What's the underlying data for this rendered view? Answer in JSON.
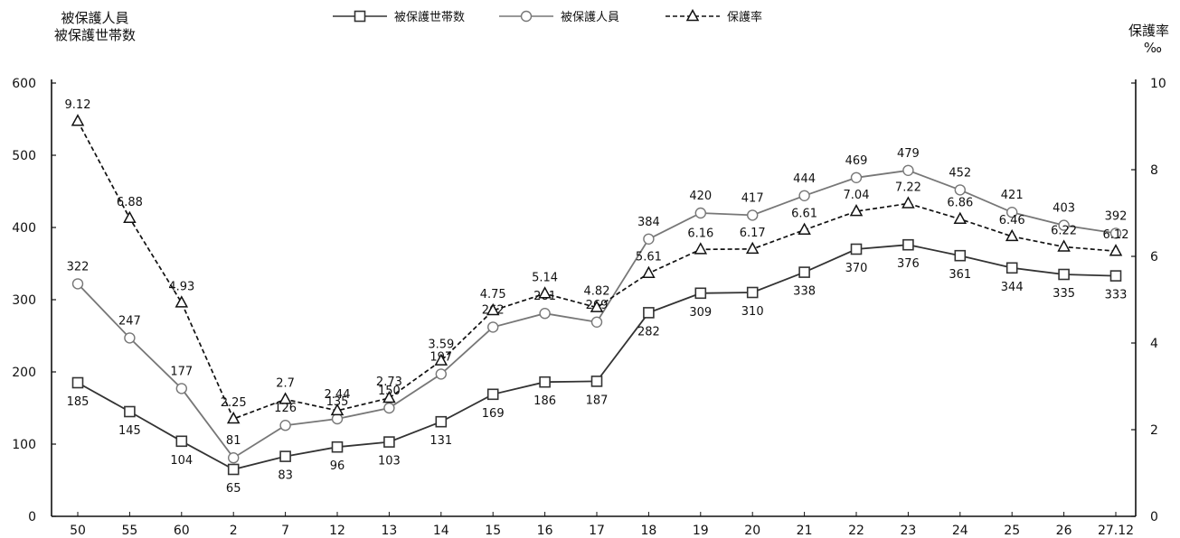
{
  "chart_data": {
    "type": "line",
    "y_left_title_line1": "被保護人員",
    "y_left_title_line2": "被保護世帯数",
    "y_right_title_line1": "保護率",
    "y_right_title_line2": "‰",
    "categories": [
      "50",
      "55",
      "60",
      "2",
      "7",
      "12",
      "13",
      "14",
      "15",
      "16",
      "17",
      "18",
      "19",
      "20",
      "21",
      "22",
      "23",
      "24",
      "25",
      "26",
      "27.12"
    ],
    "y_left_ticks": [
      "0",
      "100",
      "200",
      "300",
      "400",
      "500",
      "600"
    ],
    "y_right_ticks": [
      "0",
      "2",
      "4",
      "6",
      "8",
      "10"
    ],
    "ylim_left": [
      0,
      600
    ],
    "ylim_right": [
      0,
      10
    ],
    "legend_position": "top-center",
    "grid": false,
    "series": [
      {
        "name": "被保護世帯数",
        "axis": "left",
        "marker": "square",
        "line_style": "solid",
        "color": "#333333",
        "values": [
          185,
          145,
          104,
          65,
          83,
          96,
          103,
          131,
          169,
          186,
          187,
          282,
          309,
          310,
          338,
          370,
          376,
          361,
          344,
          335,
          333
        ],
        "labels": [
          "185",
          "145",
          "104",
          "65",
          "83",
          "96",
          "103",
          "131",
          "169",
          "186",
          "187",
          "282",
          "309",
          "310",
          "338",
          "370",
          "376",
          "361",
          "344",
          "335",
          "333"
        ]
      },
      {
        "name": "被保護人員",
        "axis": "left",
        "marker": "circle",
        "line_style": "solid",
        "color": "#777777",
        "values": [
          322,
          247,
          177,
          81,
          126,
          135,
          150,
          197,
          262,
          281,
          269,
          384,
          420,
          417,
          444,
          469,
          479,
          452,
          421,
          403,
          392
        ],
        "labels": [
          "322",
          "247",
          "177",
          "81",
          "126",
          "135",
          "150",
          "197",
          "262",
          "281",
          "269",
          "384",
          "420",
          "417",
          "444",
          "469",
          "479",
          "452",
          "421",
          "403",
          "392"
        ]
      },
      {
        "name": "保護率",
        "axis": "right",
        "marker": "triangle",
        "line_style": "dashed",
        "color": "#111111",
        "values": [
          9.12,
          6.88,
          4.93,
          2.25,
          2.7,
          2.44,
          2.73,
          3.59,
          4.75,
          5.14,
          4.82,
          5.61,
          6.16,
          6.17,
          6.61,
          7.04,
          7.22,
          6.86,
          6.46,
          6.22,
          6.12
        ],
        "labels": [
          "9.12",
          "6.88",
          "4.93",
          "2.25",
          "2.7",
          "2.44",
          "2.73",
          "3.59",
          "4.75",
          "5.14",
          "4.82",
          "5.61",
          "6.16",
          "6.17",
          "6.61",
          "7.04",
          "7.22",
          "6.86",
          "6.46",
          "6.22",
          "6.12"
        ]
      }
    ]
  }
}
